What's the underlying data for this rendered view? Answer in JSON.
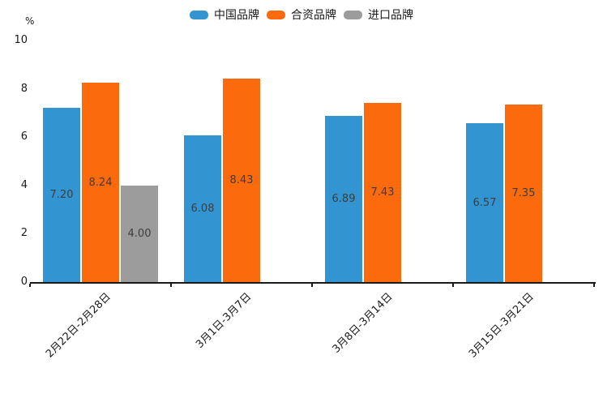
{
  "chart_data": {
    "type": "bar",
    "title": "",
    "unit_label": "%",
    "categories": [
      "2月22日-2月28日",
      "3月1日-3月7日",
      "3月8日-3月14日",
      "3月15日-3月21日"
    ],
    "series": [
      {
        "name": "中国品牌",
        "slug": "china-brand",
        "color": "#3295D1",
        "values": [
          7.2,
          6.08,
          6.89,
          6.57
        ],
        "labels": [
          "7.20",
          "6.08",
          "6.89",
          "6.57"
        ]
      },
      {
        "name": "合资品牌",
        "slug": "joint-venture-brand",
        "color": "#FB6A0D",
        "values": [
          8.24,
          8.43,
          7.43,
          7.35
        ],
        "labels": [
          "8.24",
          "8.43",
          "7.43",
          "7.35"
        ]
      },
      {
        "name": "进口品牌",
        "slug": "imported-brand",
        "color": "#9C9C9C",
        "values": [
          4.0,
          null,
          null,
          null
        ],
        "labels": [
          "4.00",
          null,
          null,
          null
        ]
      }
    ],
    "ylim": [
      0,
      10
    ],
    "yticks": [
      "0",
      "2",
      "4",
      "6",
      "8",
      "10"
    ],
    "legend_position": "top",
    "grid": false,
    "axis_color": "#1a1a1a",
    "value_label_color": "#3d3d3d"
  }
}
